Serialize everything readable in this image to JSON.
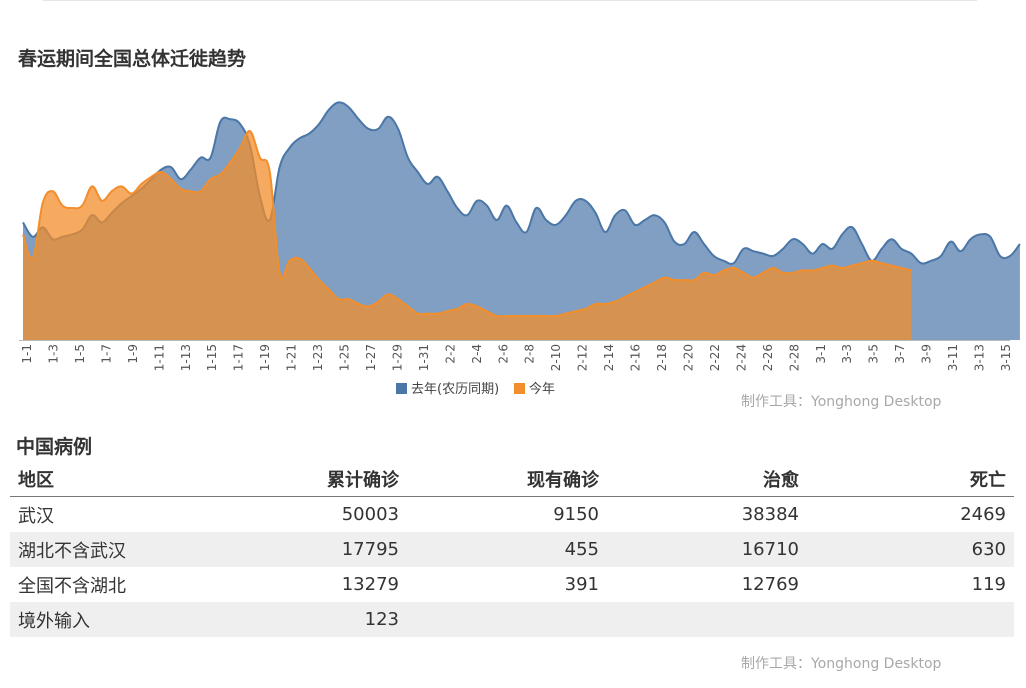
{
  "trend_chart": {
    "title": "春运期间全国总体迁徙趋势",
    "watermark": "制作工具：Yonghong Desktop"
  },
  "chart_data": {
    "type": "area",
    "title": "春运期间全国总体迁徙趋势",
    "xlabel": "",
    "ylabel": "",
    "x_tick_labels": [
      "1-1",
      "1-3",
      "1-5",
      "1-7",
      "1-9",
      "1-11",
      "1-13",
      "1-15",
      "1-17",
      "1-19",
      "1-21",
      "1-23",
      "1-25",
      "1-27",
      "1-29",
      "1-31",
      "2-2",
      "2-4",
      "2-6",
      "2-8",
      "2-10",
      "2-12",
      "2-14",
      "2-16",
      "2-18",
      "2-20",
      "2-22",
      "2-24",
      "2-26",
      "2-28",
      "3-1",
      "3-3",
      "3-5",
      "3-7",
      "3-9",
      "3-11",
      "3-13",
      "3-15"
    ],
    "ylim": [
      0,
      100
    ],
    "y_axis_shown": false,
    "grid": false,
    "legend_position": "bottom-center",
    "smooth": true,
    "series": [
      {
        "name": "去年(农历同期)",
        "color": "#4a76a8",
        "values": [
          49,
          43,
          47,
          42,
          43,
          44,
          46,
          52,
          49,
          53,
          57,
          60,
          63,
          67,
          71,
          72,
          67,
          71,
          76,
          76,
          91,
          92,
          90,
          81,
          60,
          50,
          72,
          80,
          84,
          86,
          90,
          96,
          99,
          97,
          92,
          88,
          88,
          93,
          88,
          76,
          70,
          65,
          68,
          62,
          55,
          52,
          58,
          56,
          50,
          56,
          49,
          45,
          55,
          50,
          48,
          52,
          58,
          58,
          53,
          45,
          52,
          54,
          48,
          50,
          52,
          49,
          41,
          40,
          45,
          40,
          35,
          33,
          32,
          38,
          37,
          36,
          35,
          38,
          42,
          40,
          36,
          40,
          38,
          44,
          47,
          40,
          33,
          38,
          42,
          38,
          36,
          32,
          33,
          35,
          41,
          37,
          42,
          44,
          43,
          35,
          35,
          40
        ]
      },
      {
        "name": "今年",
        "color": "#f28e2b",
        "values": [
          44,
          34,
          57,
          62,
          56,
          55,
          56,
          64,
          58,
          62,
          64,
          61,
          65,
          68,
          70,
          67,
          63,
          62,
          62,
          67,
          69,
          74,
          80,
          87,
          76,
          70,
          28,
          33,
          34,
          30,
          25,
          21,
          17,
          17,
          15,
          14,
          16,
          19,
          17,
          14,
          11,
          11,
          11,
          12,
          13,
          15,
          14,
          12,
          10,
          10,
          10,
          10,
          10,
          10,
          10,
          11,
          12,
          13,
          15,
          15,
          16,
          18,
          20,
          22,
          24,
          26,
          25,
          25,
          25,
          28,
          27,
          29,
          30,
          28,
          26,
          28,
          30,
          28,
          28,
          29,
          29,
          30,
          31,
          30,
          31,
          32,
          33,
          32,
          31,
          30,
          29
        ]
      }
    ]
  },
  "cases_section": {
    "title": "中国病例",
    "watermark": "制作工具：Yonghong Desktop",
    "columns": [
      "地区",
      "累计确诊",
      "现有确诊",
      "治愈",
      "死亡"
    ],
    "rows": [
      [
        "武汉",
        "50003",
        "9150",
        "38384",
        "2469"
      ],
      [
        "湖北不含武汉",
        "17795",
        "455",
        "16710",
        "630"
      ],
      [
        "全国不含湖北",
        "13279",
        "391",
        "12769",
        "119"
      ],
      [
        "境外输入",
        "123",
        "",
        "",
        ""
      ]
    ]
  }
}
